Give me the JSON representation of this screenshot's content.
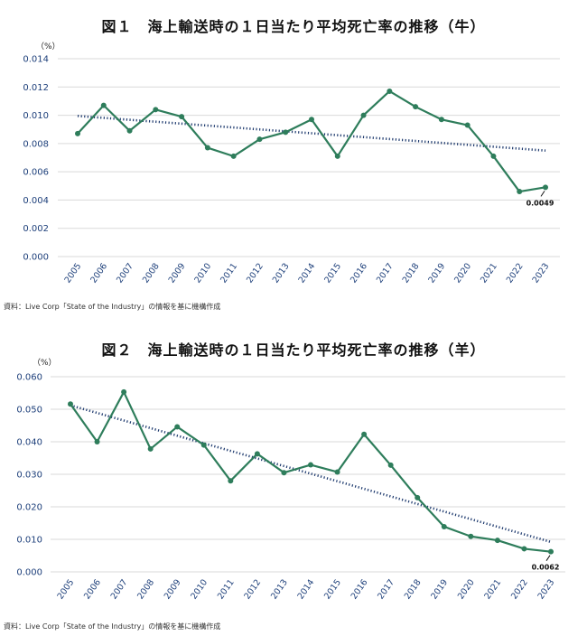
{
  "chart_data": [
    {
      "type": "line",
      "title": "図１　海上輸送時の１日当たり平均死亡率の推移（牛）",
      "unit": "（%）",
      "source": "資料：Live Corp「State of the Industry」の情報を基に機構作成",
      "x": [
        "2005",
        "2006",
        "2007",
        "2008",
        "2009",
        "2010",
        "2011",
        "2012",
        "2013",
        "2014",
        "2015",
        "2016",
        "2017",
        "2018",
        "2019",
        "2020",
        "2021",
        "2022",
        "2023"
      ],
      "yticks": [
        "0.000",
        "0.002",
        "0.004",
        "0.006",
        "0.008",
        "0.010",
        "0.012",
        "0.014"
      ],
      "ylim": [
        0,
        0.014
      ],
      "series": [
        {
          "values": [
            0.0087,
            0.0107,
            0.0089,
            0.0104,
            0.0099,
            0.0077,
            0.0071,
            0.0083,
            0.0088,
            0.0097,
            0.0071,
            0.01,
            0.0117,
            0.0106,
            0.0097,
            0.0093,
            0.0071,
            0.0046,
            0.0049
          ],
          "color": "#2e7d5b"
        }
      ],
      "trend": [
        0.00995,
        0.0075
      ],
      "trend_color": "#1e3a6e",
      "end_label": "0.0049",
      "grid": true
    },
    {
      "type": "line",
      "title": "図２　海上輸送時の１日当たり平均死亡率の推移（羊）",
      "unit": "（%）",
      "source": "資料：Live Corp「State of the Industry」の情報を基に機構作成",
      "x": [
        "2005",
        "2006",
        "2007",
        "2008",
        "2009",
        "2010",
        "2011",
        "2012",
        "2013",
        "2014",
        "2015",
        "2016",
        "2017",
        "2018",
        "2019",
        "2020",
        "2021",
        "2022",
        "2023"
      ],
      "yticks": [
        "0.000",
        "0.010",
        "0.020",
        "0.030",
        "0.040",
        "0.050",
        "0.060"
      ],
      "ylim": [
        0,
        0.06
      ],
      "series": [
        {
          "values": [
            0.0516,
            0.04,
            0.0553,
            0.0378,
            0.0446,
            0.039,
            0.028,
            0.0363,
            0.0305,
            0.0329,
            0.0307,
            0.0423,
            0.0328,
            0.0228,
            0.0139,
            0.0109,
            0.0097,
            0.0071,
            0.0062
          ],
          "color": "#2e7d5b"
        }
      ],
      "trend": [
        0.0512,
        0.0092
      ],
      "trend_color": "#1e3a6e",
      "end_label": "0.0062",
      "grid": true
    }
  ]
}
